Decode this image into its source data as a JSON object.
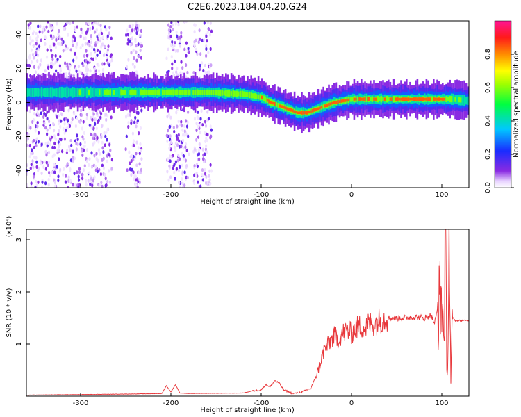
{
  "title": "C2E6.2023.184.04.20.G24",
  "chart_data": [
    {
      "type": "heatmap",
      "xlabel": "Height of straight line (km)",
      "ylabel": "Frequency (Hz)",
      "xlim": [
        -360,
        130
      ],
      "ylim": [
        -50,
        48
      ],
      "xticks": [
        -300,
        -200,
        -100,
        0,
        100
      ],
      "xtick_labels": [
        "-300",
        "-200",
        "-100",
        "0",
        "100"
      ],
      "yticks": [
        -40,
        -20,
        0,
        20,
        40
      ],
      "ytick_labels": [
        "-40",
        "-20",
        "0",
        "20",
        "40"
      ],
      "colorbar": {
        "label": "Normalized spectral amplitude",
        "range": [
          0.0,
          1.0
        ],
        "ticks": [
          0.0,
          0.2,
          0.4,
          0.6,
          0.8
        ],
        "tick_labels": [
          "0.0",
          "0.2",
          "0.4",
          "0.6",
          "0.8"
        ],
        "colormap": "rainbow (white-violet-blue-cyan-green-yellow-orange-red-magenta)"
      },
      "ridge": {
        "x": [
          -360,
          -300,
          -250,
          -200,
          -160,
          -120,
          -100,
          -90,
          -80,
          -70,
          -60,
          -50,
          -40,
          -30,
          -20,
          -10,
          0,
          20,
          40,
          60,
          80,
          100,
          110,
          130
        ],
        "frequency": [
          6,
          6,
          6,
          6,
          6,
          5,
          3,
          0,
          -2,
          -4,
          -6,
          -6,
          -4,
          -2,
          0,
          1,
          2,
          2,
          2,
          2,
          2,
          2,
          2,
          1
        ],
        "peak_amplitude": [
          0.45,
          0.5,
          0.55,
          0.65,
          0.6,
          0.7,
          0.75,
          0.85,
          0.85,
          0.9,
          0.95,
          0.95,
          0.9,
          0.85,
          0.95,
          0.95,
          0.9,
          0.75,
          0.8,
          0.95,
          0.95,
          0.85,
          0.6,
          0.4
        ]
      },
      "noise_bands": [
        [
          -360,
          -265
        ],
        [
          -250,
          -232
        ],
        [
          -205,
          -180
        ],
        [
          -175,
          -155
        ]
      ],
      "grid": false
    },
    {
      "type": "line",
      "xlabel": "Height of straight line (km)",
      "ylabel": "SNR (10 * v/v)",
      "yscale_label": "(x10⁴)",
      "xlim": [
        -360,
        130
      ],
      "ylim": [
        0,
        3.2
      ],
      "xticks": [
        -300,
        -200,
        -100,
        0,
        100
      ],
      "xtick_labels": [
        "-300",
        "-200",
        "-100",
        "0",
        "100"
      ],
      "yticks": [
        1,
        2,
        3
      ],
      "ytick_labels": [
        "1",
        "2",
        "3"
      ],
      "series": [
        {
          "color": "#e8383c",
          "x": [
            -360,
            -300,
            -250,
            -210,
            -205,
            -200,
            -195,
            -190,
            -180,
            -120,
            -110,
            -100,
            -95,
            -90,
            -85,
            -80,
            -75,
            -65,
            -55,
            -45,
            -40,
            -35,
            -30,
            -25,
            -20,
            -15,
            -10,
            -5,
            0,
            5,
            10,
            15,
            20,
            25,
            30,
            35,
            40,
            50,
            60,
            70,
            80,
            88,
            92,
            96,
            100,
            102,
            104,
            106,
            108,
            110,
            112,
            115,
            120,
            130
          ],
          "y": [
            0.02,
            0.03,
            0.04,
            0.05,
            0.2,
            0.08,
            0.22,
            0.06,
            0.05,
            0.06,
            0.1,
            0.12,
            0.22,
            0.18,
            0.3,
            0.25,
            0.12,
            0.05,
            0.08,
            0.15,
            0.35,
            0.6,
            0.9,
            1.0,
            1.15,
            1.1,
            1.2,
            1.25,
            1.2,
            1.3,
            1.35,
            1.3,
            1.4,
            1.38,
            1.45,
            1.47,
            1.5,
            1.5,
            1.5,
            1.52,
            1.5,
            1.55,
            1.4,
            1.7,
            1.9,
            1.2,
            2.6,
            0.3,
            3.2,
            0.2,
            1.5,
            1.45,
            1.45,
            1.45
          ]
        }
      ],
      "grid": false
    }
  ]
}
